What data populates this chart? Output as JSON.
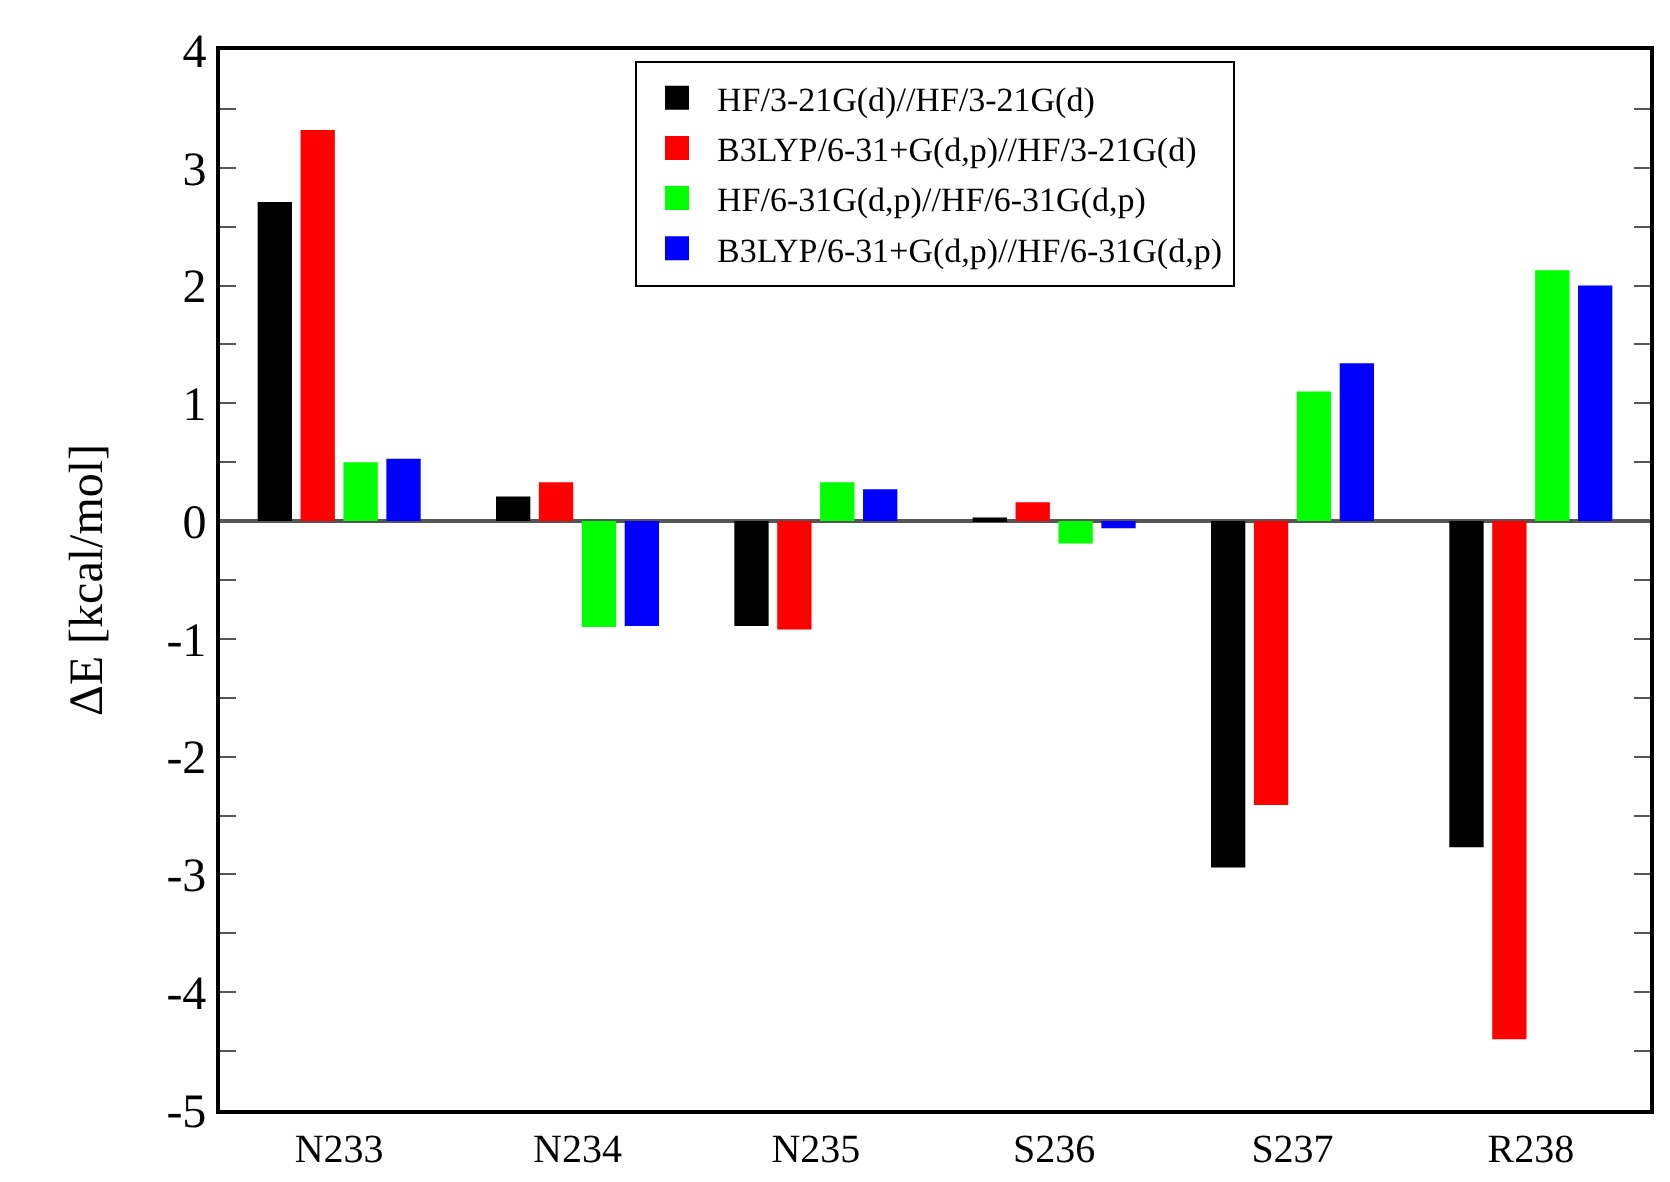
{
  "chart_data": {
    "type": "bar",
    "ylabel": "ΔE [kcal/mol]",
    "categories": [
      "N233",
      "N234",
      "N235",
      "S236",
      "S237",
      "R238"
    ],
    "series": [
      {
        "name": "HF/3-21G(d)//HF/3-21G(d)",
        "color": "#000000",
        "values": [
          2.71,
          0.21,
          -0.89,
          0.03,
          -2.94,
          -2.77
        ]
      },
      {
        "name": "B3LYP/6-31+G(d,p)//HF/3-21G(d)",
        "color": "#ff0000",
        "values": [
          3.32,
          0.33,
          -0.92,
          0.16,
          -2.41,
          -4.4
        ]
      },
      {
        "name": "HF/6-31G(d,p)//HF/6-31G(d,p)",
        "color": "#00ff00",
        "values": [
          0.5,
          -0.9,
          0.33,
          -0.19,
          1.1,
          2.13
        ]
      },
      {
        "name": "B3LYP/6-31+G(d,p)//HF/6-31G(d,p)",
        "color": "#0000ff",
        "values": [
          0.53,
          -0.89,
          0.27,
          -0.06,
          1.34,
          2.0
        ]
      }
    ],
    "ylim": [
      -5,
      4
    ],
    "yticks": [
      -5,
      {
        "value": -4.5,
        "label": null
      },
      -4,
      {
        "value": -3.5,
        "label": null
      },
      -3,
      {
        "value": -2.5,
        "label": null
      },
      -2,
      {
        "value": -1.5,
        "label": null
      },
      -1,
      {
        "value": -0.5,
        "label": null
      },
      0,
      {
        "value": 0.5,
        "label": null
      },
      1,
      {
        "value": 1.5,
        "label": null
      },
      2,
      {
        "value": 2.5,
        "label": null
      },
      3,
      {
        "value": 3.5,
        "label": null
      },
      4
    ],
    "ref_lines": [
      {
        "axis": "y",
        "value": 0,
        "color": "#555555"
      }
    ],
    "legend": "top"
  }
}
